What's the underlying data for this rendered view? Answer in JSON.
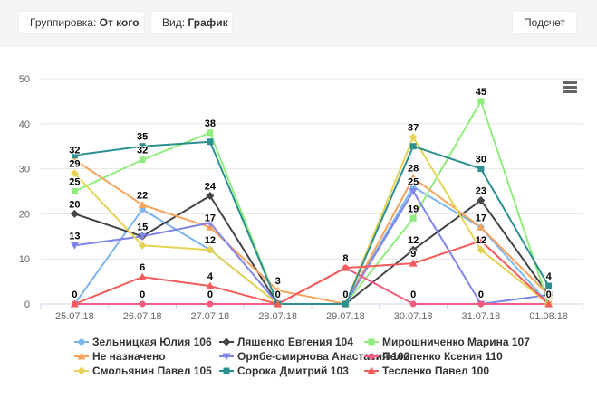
{
  "toolbar": {
    "group_prefix": "Группировка: ",
    "group_value": "От кого",
    "view_prefix": "Вид: ",
    "view_value": "График",
    "calc_label": "Подсчет"
  },
  "chart_data": {
    "type": "line",
    "categories": [
      "25.07.18",
      "26.07.18",
      "27.07.18",
      "28.07.18",
      "29.07.18",
      "30.07.18",
      "31.07.18",
      "01.08.18"
    ],
    "ylim": [
      0,
      50
    ],
    "yticks": [
      0,
      10,
      20,
      30,
      40,
      50
    ],
    "grid": true,
    "legend_position": "bottom",
    "series": [
      {
        "name": "Зельницкая Юлия 106",
        "color": "#7cb5ec",
        "marker": "circle",
        "values": [
          0,
          21,
          12,
          0,
          0,
          26,
          17,
          0
        ]
      },
      {
        "name": "Ляшенко Евгения 104",
        "color": "#434348",
        "marker": "diamond",
        "values": [
          20,
          15,
          24,
          0,
          0,
          12,
          23,
          2
        ]
      },
      {
        "name": "Мирошниченко Марина 107",
        "color": "#90ed7d",
        "marker": "square",
        "values": [
          25,
          32,
          38,
          0,
          0,
          19,
          45,
          0
        ]
      },
      {
        "name": "Не назначено",
        "color": "#f7a35c",
        "marker": "triangle",
        "values": [
          32,
          22,
          17,
          3,
          0,
          28,
          17,
          2
        ]
      },
      {
        "name": "Орибе-смирнова Анастасия 102",
        "color": "#8085e9",
        "marker": "triangle-down",
        "values": [
          13,
          15,
          18,
          0,
          0,
          25,
          0,
          2
        ]
      },
      {
        "name": "Пелипенко Ксения 110",
        "color": "#f15c80",
        "marker": "circle",
        "values": [
          0,
          0,
          0,
          0,
          8,
          0,
          0,
          0
        ]
      },
      {
        "name": "Смольянин Павел 105",
        "color": "#e4d354",
        "marker": "diamond",
        "values": [
          29,
          13,
          12,
          0,
          0,
          37,
          12,
          0
        ]
      },
      {
        "name": "Сорока Дмитрий 103",
        "color": "#2b908f",
        "marker": "square",
        "values": [
          33,
          35,
          36,
          0,
          0,
          35,
          30,
          4
        ]
      },
      {
        "name": "Тесленко Павел 100",
        "color": "#f45b5b",
        "marker": "triangle",
        "values": [
          0,
          6,
          4,
          0,
          8,
          9,
          14,
          0
        ]
      }
    ],
    "data_labels": [
      {
        "x": "25.07.18",
        "value": "32"
      },
      {
        "x": "25.07.18",
        "value": "29"
      },
      {
        "x": "25.07.18",
        "value": "25"
      },
      {
        "x": "25.07.18",
        "value": "20"
      },
      {
        "x": "25.07.18",
        "value": "13"
      },
      {
        "x": "25.07.18",
        "value": "0"
      },
      {
        "x": "26.07.18",
        "value": "35"
      },
      {
        "x": "26.07.18",
        "value": "32"
      },
      {
        "x": "26.07.18",
        "value": "22"
      },
      {
        "x": "26.07.18",
        "value": "15"
      },
      {
        "x": "26.07.18",
        "value": "6"
      },
      {
        "x": "26.07.18",
        "value": "0"
      },
      {
        "x": "27.07.18",
        "value": "38"
      },
      {
        "x": "27.07.18",
        "value": "24"
      },
      {
        "x": "27.07.18",
        "value": "17"
      },
      {
        "x": "27.07.18",
        "value": "12"
      },
      {
        "x": "27.07.18",
        "value": "4"
      },
      {
        "x": "27.07.18",
        "value": "0"
      },
      {
        "x": "28.07.18",
        "value": "3"
      },
      {
        "x": "28.07.18",
        "value": "0"
      },
      {
        "x": "29.07.18",
        "value": "8"
      },
      {
        "x": "29.07.18",
        "value": "0"
      },
      {
        "x": "30.07.18",
        "value": "37"
      },
      {
        "x": "30.07.18",
        "value": "28"
      },
      {
        "x": "30.07.18",
        "value": "25"
      },
      {
        "x": "30.07.18",
        "value": "19"
      },
      {
        "x": "30.07.18",
        "value": "12"
      },
      {
        "x": "30.07.18",
        "value": "9"
      },
      {
        "x": "30.07.18",
        "value": "0"
      },
      {
        "x": "31.07.18",
        "value": "45"
      },
      {
        "x": "31.07.18",
        "value": "30"
      },
      {
        "x": "31.07.18",
        "value": "23"
      },
      {
        "x": "31.07.18",
        "value": "17"
      },
      {
        "x": "31.07.18",
        "value": "12"
      },
      {
        "x": "31.07.18",
        "value": "0"
      },
      {
        "x": "01.08.18",
        "value": "4"
      },
      {
        "x": "01.08.18",
        "value": "0"
      }
    ]
  },
  "menu_icon": "hamburger-menu-icon"
}
